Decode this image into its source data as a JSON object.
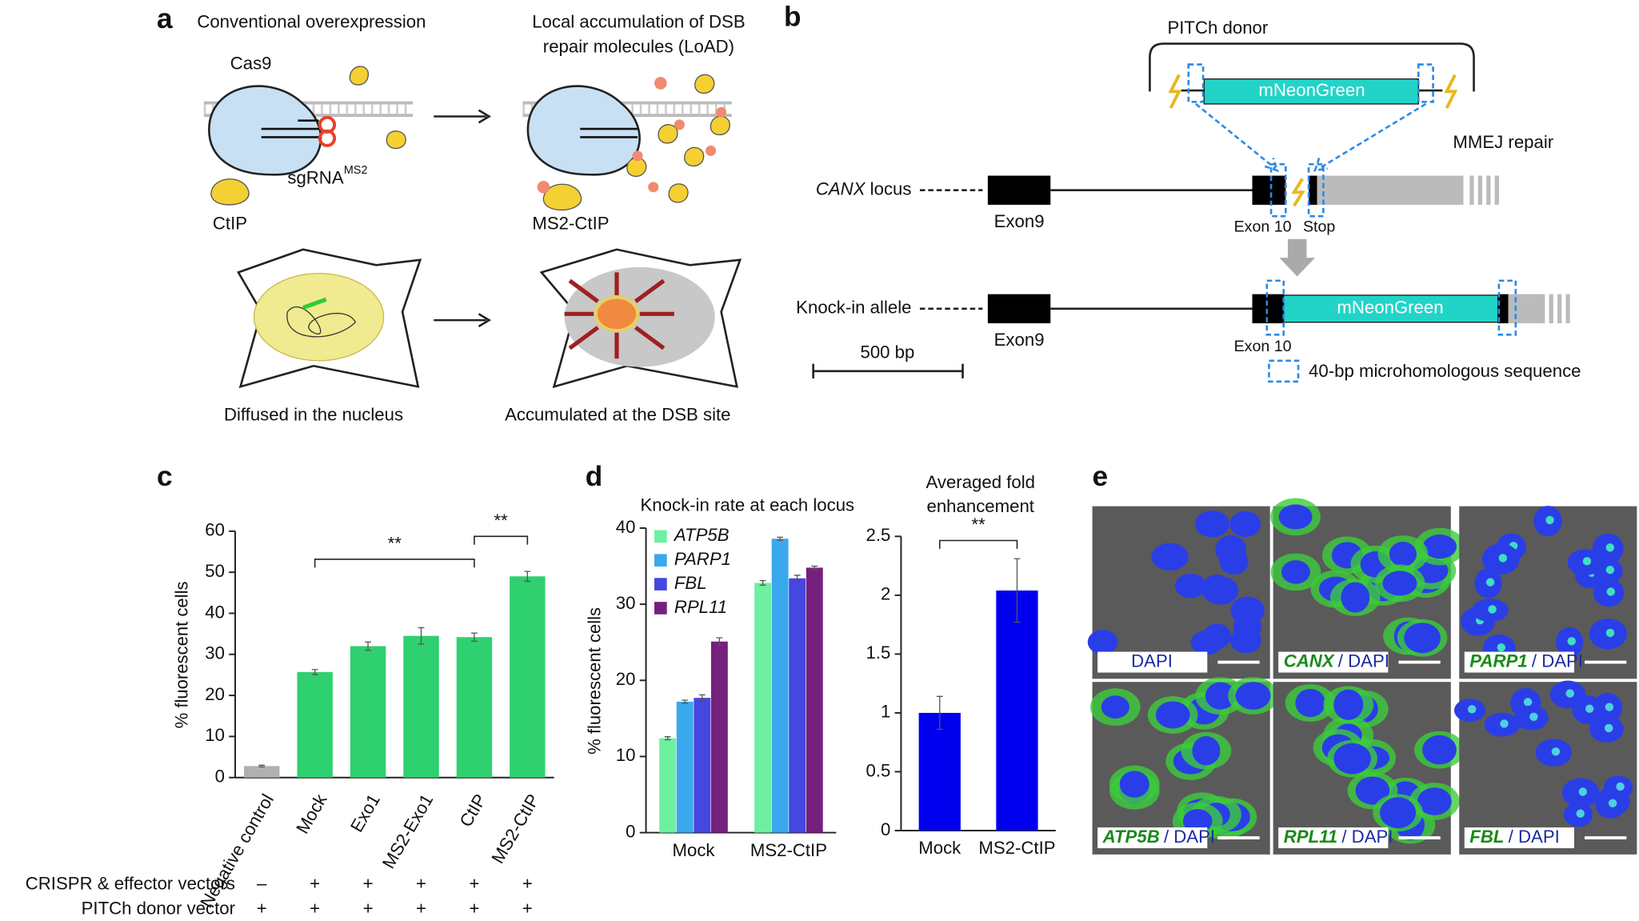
{
  "panel_a": {
    "label": "a",
    "left_title": "Conventional overexpression",
    "right_title": [
      "Local accumulation of DSB",
      "repair molecules (LoAD)"
    ],
    "cas9": "Cas9",
    "sgrna": "sgRNA",
    "sgrna_sup": "MS2",
    "ctip": "CtIP",
    "ms2_ctip": "MS2-CtIP",
    "left_caption": "Diffused in the nucleus",
    "right_caption": "Accumulated at the DSB site"
  },
  "panel_b": {
    "label": "b",
    "donor": "PITCh donor",
    "donor_gene": "mNeonGreen",
    "repair": "MMEJ repair",
    "locus_gene": "CANX",
    "locus_suffix": " locus",
    "exon9": "Exon9",
    "exon10": "Exon 10",
    "stop": "Stop",
    "allele": "Knock-in allele",
    "allele_exon9": "Exon9",
    "allele_gene": "mNeonGreen",
    "allele_exon10": "Exon 10",
    "scale": "500 bp",
    "legend": "40-bp microhomologous sequence"
  },
  "panel_labels": {
    "c": "c",
    "d": "d"
  },
  "chart_data": [
    {
      "type": "bar",
      "y_label": "% fluorescent cells",
      "categories": [
        "Negative control",
        "Mock",
        "Exo1",
        "MS2-Exo1",
        "CtIP",
        "MS2-CtIP"
      ],
      "values": [
        2.8,
        25.7,
        32,
        34.5,
        34.2,
        49
      ],
      "errors": [
        0.2,
        0.6,
        1,
        2,
        1,
        1.2
      ],
      "colors": [
        "#b0b0b0",
        "#2fd070",
        "#2fd070",
        "#2fd070",
        "#2fd070",
        "#2fd070"
      ],
      "ylim": [
        0,
        60
      ],
      "yticks": [
        0,
        10,
        20,
        30,
        40,
        50,
        60
      ],
      "significance": [
        {
          "from": 1,
          "to": 4,
          "label": "**"
        },
        {
          "from": 4,
          "to": 5,
          "label": "**"
        }
      ],
      "conditions": [
        {
          "label": "CRISPR & effector vectors",
          "values": [
            "–",
            "+",
            "+",
            "+",
            "+",
            "+"
          ]
        },
        {
          "label": "PITCh donor vector",
          "values": [
            "+",
            "+",
            "+",
            "+",
            "+",
            "+"
          ]
        }
      ]
    },
    {
      "type": "grouped_bar",
      "title": "Knock-in rate at each locus",
      "y_label": "% fluorescent cells",
      "categories": [
        "Mock",
        "MS2-CtIP"
      ],
      "series": [
        {
          "name": "ATP5B",
          "color": "#6ef0a0",
          "values": [
            12.4,
            32.8
          ],
          "errors": [
            0.2,
            0.3
          ]
        },
        {
          "name": "PARP1",
          "color": "#3aa8ec",
          "values": [
            17.2,
            38.6
          ],
          "errors": [
            0.2,
            0.2
          ]
        },
        {
          "name": "FBL",
          "color": "#4646e0",
          "values": [
            17.7,
            33.4
          ],
          "errors": [
            0.4,
            0.4
          ]
        },
        {
          "name": "RPL11",
          "color": "#76207e",
          "values": [
            25.1,
            34.8
          ],
          "errors": [
            0.5,
            0.2
          ]
        }
      ],
      "ylim": [
        0,
        40
      ],
      "yticks": [
        0,
        10,
        20,
        30,
        40
      ],
      "legend": "upper left"
    },
    {
      "type": "bar",
      "title": [
        "Averaged fold",
        "enhancement"
      ],
      "categories": [
        "Mock",
        "MS2-CtIP"
      ],
      "values": [
        1,
        2.04
      ],
      "errors": [
        0.14,
        0.27
      ],
      "colors": [
        "#0000ee",
        "#0000ee"
      ],
      "ylim": [
        0,
        2.5
      ],
      "yticks": [
        0,
        0.5,
        1,
        1.5,
        2,
        2.5
      ],
      "significance": [
        {
          "from": 0,
          "to": 1,
          "label": "**"
        }
      ]
    }
  ],
  "panel_e": {
    "label": "e",
    "images": [
      {
        "stain": "DAPI"
      },
      {
        "gene": "CANX",
        "stain": "/ DAPI"
      },
      {
        "gene": "PARP1",
        "stain": "/ DAPI"
      },
      {
        "gene": "ATP5B",
        "stain": "/ DAPI"
      },
      {
        "gene": "RPL11",
        "stain": "/ DAPI"
      },
      {
        "gene": "FBL",
        "stain": "/ DAPI"
      }
    ]
  }
}
